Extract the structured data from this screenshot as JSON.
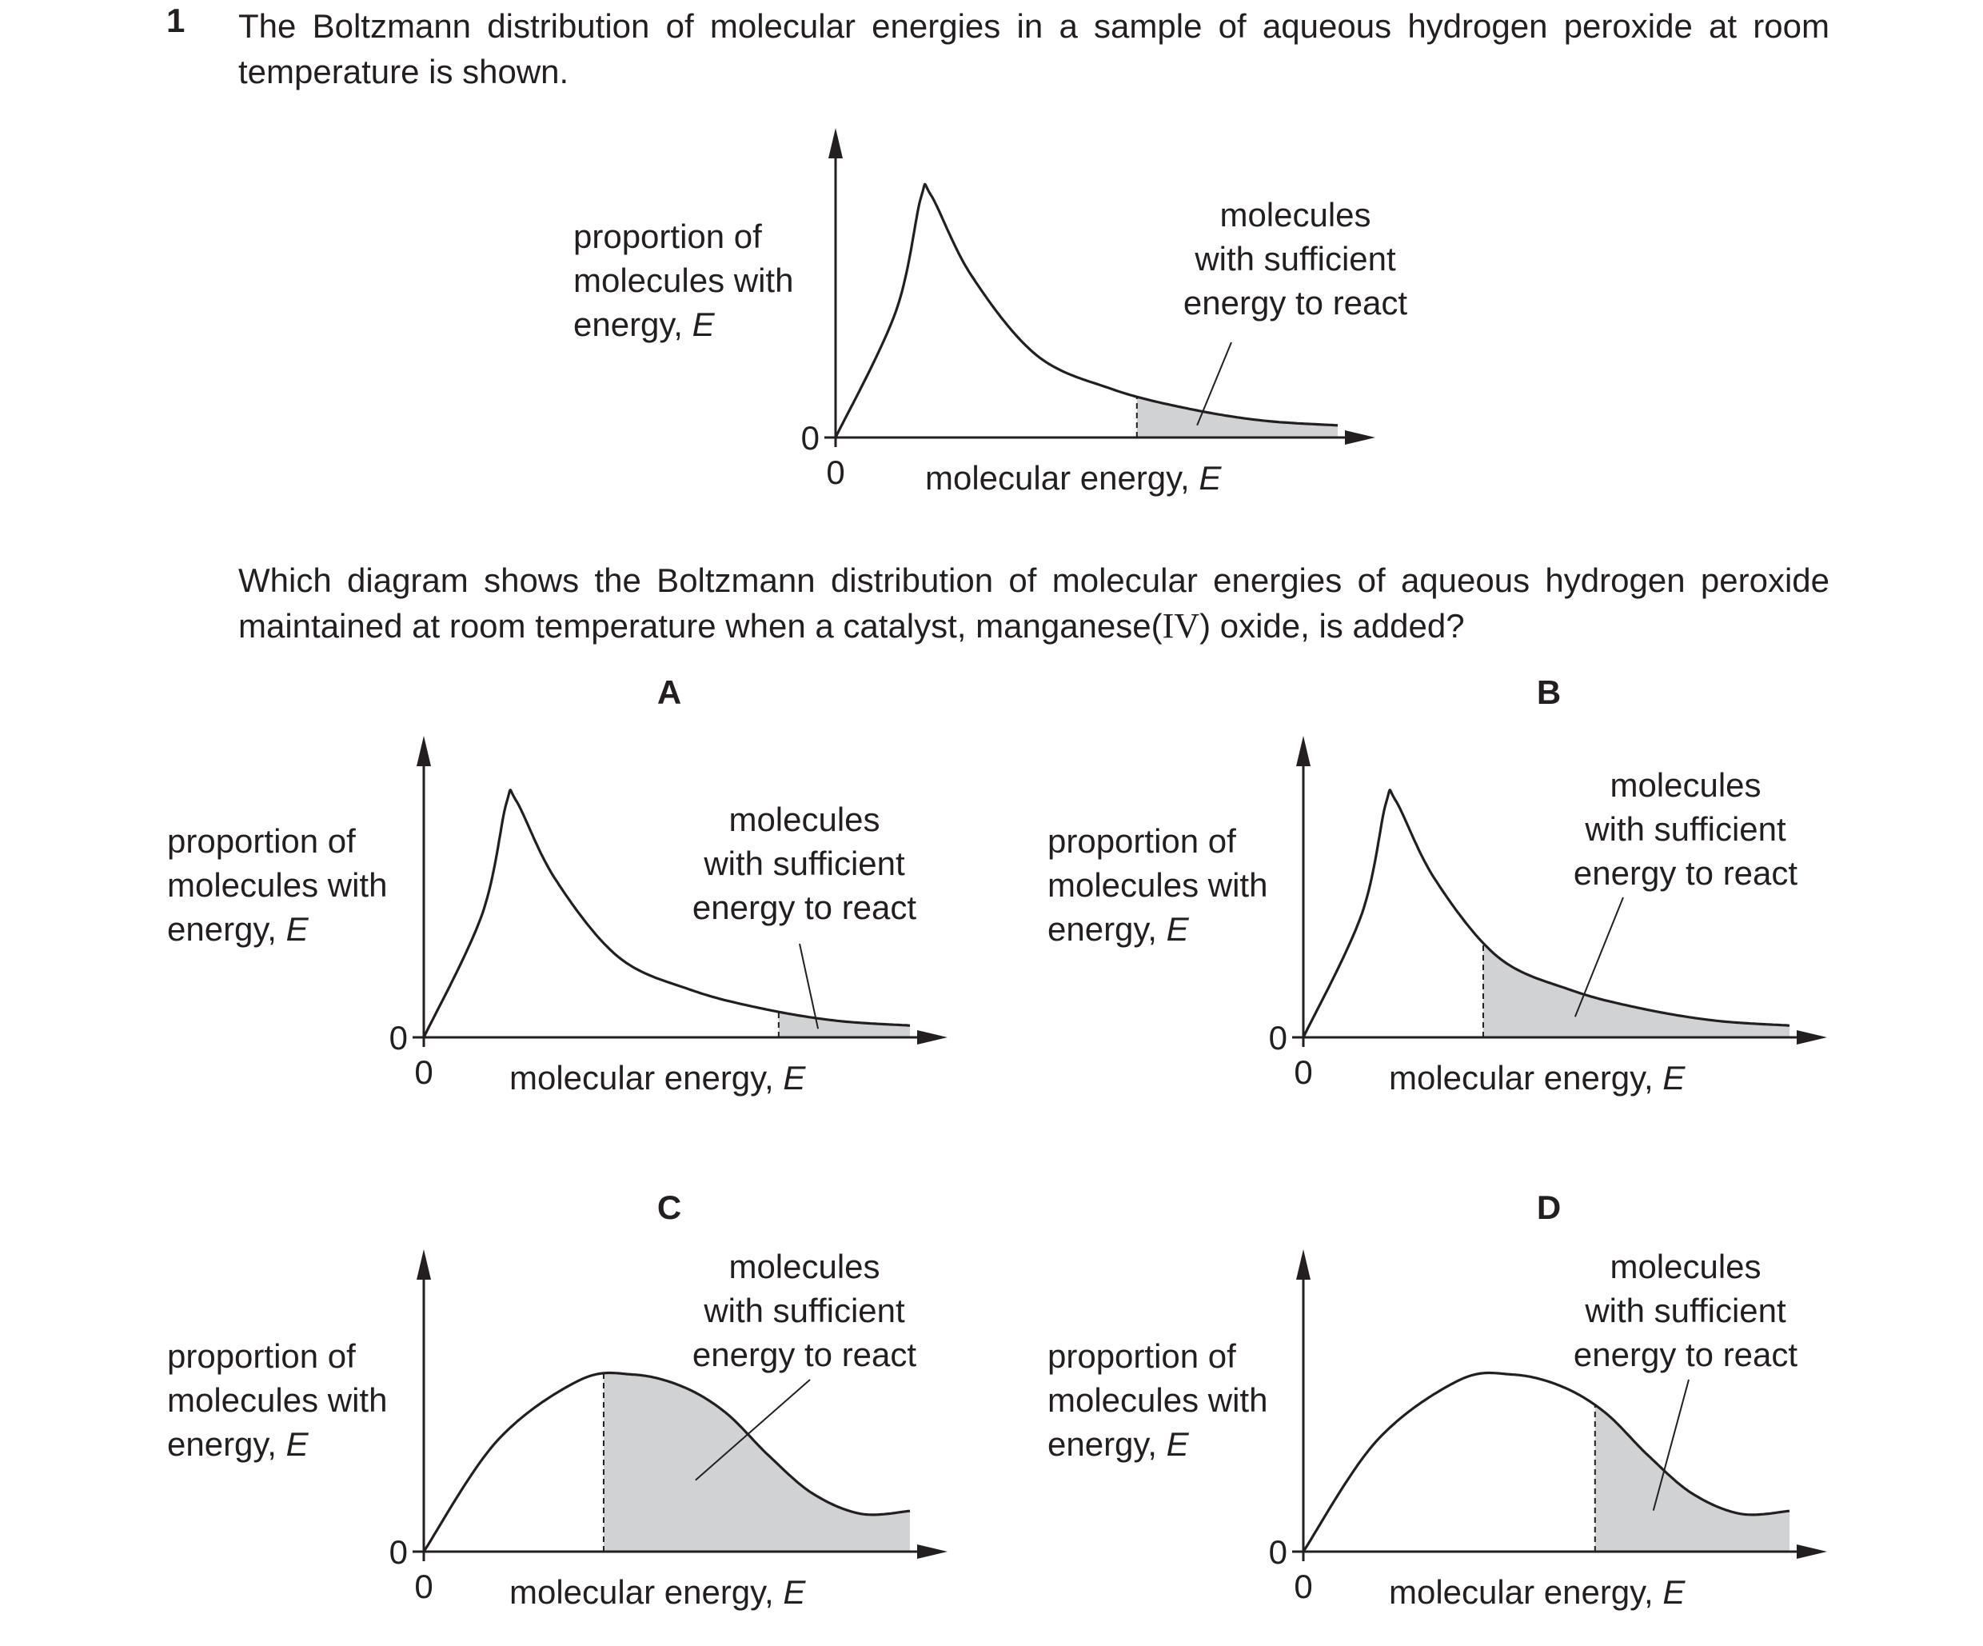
{
  "question": {
    "number": "1",
    "intro_part1": "The Boltzmann distribution of molecular energies in a sample of aqueous hydrogen peroxide at room temperature is shown.",
    "prompt_before": "Which diagram shows the Boltzmann distribution of molecular energies of aqueous hydrogen peroxide maintained at room temperature when a catalyst, manganese(",
    "prompt_roman": "IV",
    "prompt_after": ") oxide, is added?"
  },
  "diagrams": [
    {
      "id": "main",
      "letter": "",
      "ylabel": [
        "proportion of",
        "molecules with",
        "energy, "
      ],
      "ylabel_italic": "E",
      "xlabel": "molecular energy, ",
      "xlabel_italic": "E",
      "origin_x": "0",
      "origin_y": "0",
      "annotation": [
        "molecules",
        "with sufficient",
        "energy to react"
      ],
      "curve": "narrow",
      "activation_energy": 0.6
    },
    {
      "id": "A",
      "letter": "A",
      "ylabel": [
        "proportion of",
        "molecules with",
        "energy, "
      ],
      "ylabel_italic": "E",
      "xlabel": "molecular energy, ",
      "xlabel_italic": "E",
      "origin_x": "0",
      "origin_y": "0",
      "annotation": [
        "molecules",
        "with sufficient",
        "energy to react"
      ],
      "curve": "narrow",
      "activation_energy": 0.73
    },
    {
      "id": "B",
      "letter": "B",
      "ylabel": [
        "proportion of",
        "molecules with",
        "energy, "
      ],
      "ylabel_italic": "E",
      "xlabel": "molecular energy, ",
      "xlabel_italic": "E",
      "origin_x": "0",
      "origin_y": "0",
      "annotation": [
        "molecules",
        "with sufficient",
        "energy to react"
      ],
      "curve": "narrow",
      "activation_energy": 0.37
    },
    {
      "id": "C",
      "letter": "C",
      "ylabel": [
        "proportion of",
        "molecules with",
        "energy, "
      ],
      "ylabel_italic": "E",
      "xlabel": "molecular energy, ",
      "xlabel_italic": "E",
      "origin_x": "0",
      "origin_y": "0",
      "annotation": [
        "molecules",
        "with sufficient",
        "energy to react"
      ],
      "curve": "broad",
      "activation_energy": 0.37
    },
    {
      "id": "D",
      "letter": "D",
      "ylabel": [
        "proportion of",
        "molecules with",
        "energy, "
      ],
      "ylabel_italic": "E",
      "xlabel": "molecular energy, ",
      "xlabel_italic": "E",
      "origin_x": "0",
      "origin_y": "0",
      "annotation": [
        "molecules",
        "with sufficient",
        "energy to react"
      ],
      "curve": "broad",
      "activation_energy": 0.6
    }
  ],
  "colors": {
    "ink": "#231f20",
    "shade": "#d1d2d4"
  }
}
